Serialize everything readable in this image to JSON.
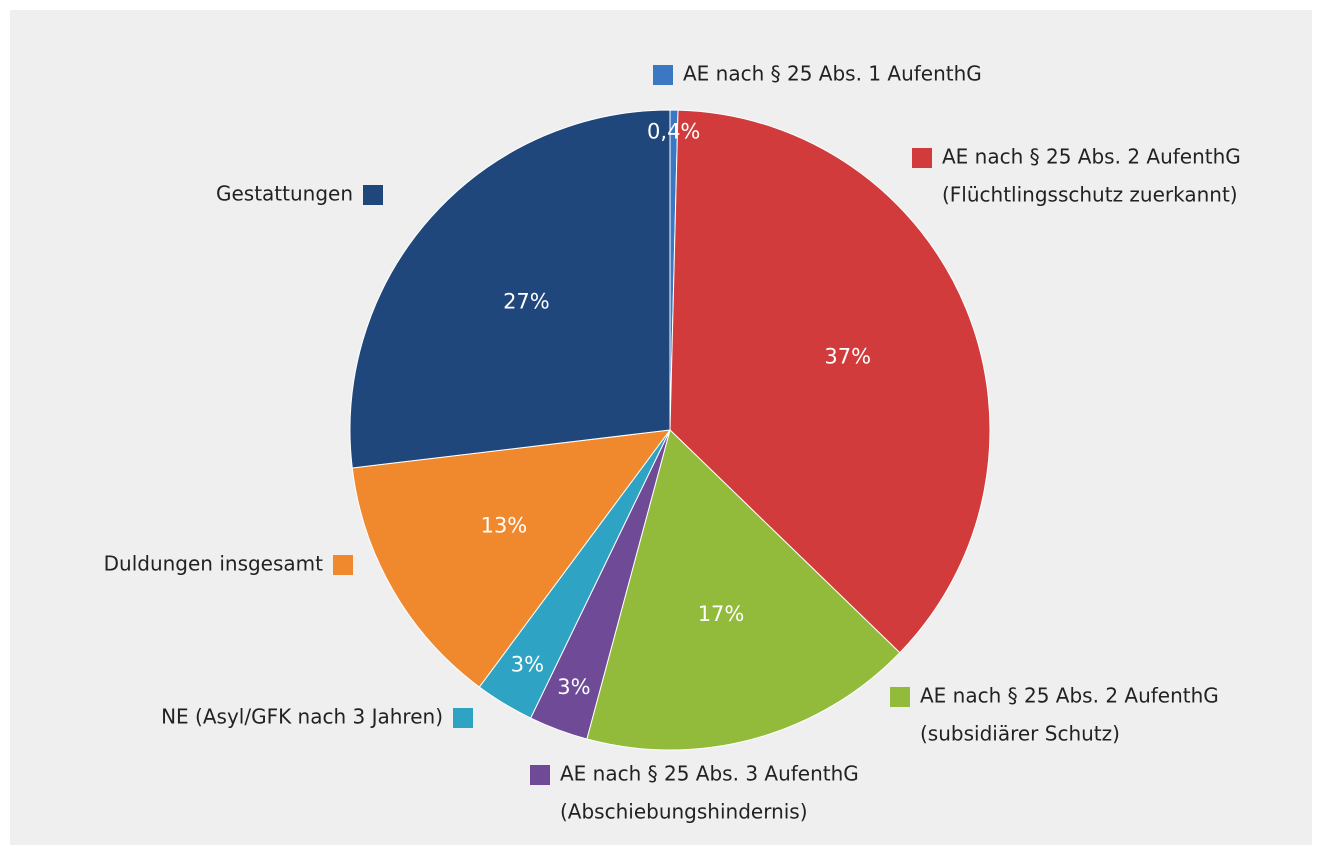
{
  "chart_data": {
    "type": "pie",
    "categories": [
      [
        "AE nach § 25 Abs. 1 AufenthG"
      ],
      [
        "AE nach § 25 Abs. 2 AufenthG",
        "(Flüchtlingsschutz zuerkannt)"
      ],
      [
        "AE nach § 25 Abs. 2 AufenthG",
        "(subsidiärer Schutz)"
      ],
      [
        "AE nach § 25 Abs. 3 AufenthG",
        "(Abschiebungshindernis)"
      ],
      [
        "NE (Asyl/GFK nach 3 Jahren)"
      ],
      [
        "Duldungen insgesamt"
      ],
      [
        "Gestattungen"
      ]
    ],
    "values": [
      0.4,
      37,
      17,
      3,
      3,
      13,
      27
    ],
    "value_labels": [
      "0,4%",
      "37%",
      "17%",
      "3%",
      "3%",
      "13%",
      "27%"
    ],
    "colors": [
      "#3a78c3",
      "#d13b3b",
      "#92bb3c",
      "#6f4a97",
      "#2fa3c3",
      "#f0892e",
      "#1f477c"
    ]
  }
}
